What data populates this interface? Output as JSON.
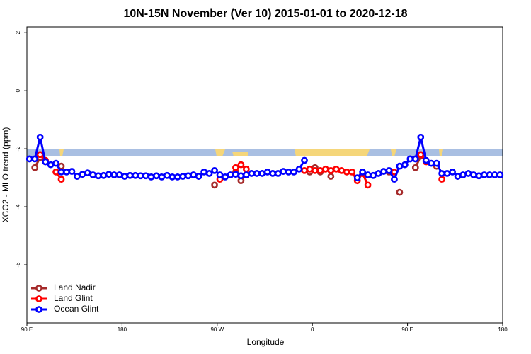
{
  "chart_data": {
    "type": "line",
    "title": "10N-15N November (Ver 10)   2015-01-01 to 2020-12-18",
    "xlabel": "Longitude",
    "ylabel": "XCO2 - MLO trend (ppm)",
    "xlim": [
      90,
      540
    ],
    "xticks": [
      {
        "value": 90,
        "label": "90 E"
      },
      {
        "value": 180,
        "label": "180"
      },
      {
        "value": 270,
        "label": "90 W"
      },
      {
        "value": 360,
        "label": "0"
      },
      {
        "value": 450,
        "label": "90 E"
      },
      {
        "value": 540,
        "label": "180"
      }
    ],
    "ylim": [
      -8,
      2.2
    ],
    "yticks": [
      -6,
      -4,
      -2,
      0,
      2
    ],
    "grid": false,
    "legend": "bottomleft",
    "x": [
      92.5,
      97.5,
      102.5,
      107.5,
      112.5,
      117.5,
      122.5,
      127.5,
      132.5,
      137.5,
      142.5,
      147.5,
      152.5,
      157.5,
      162.5,
      167.5,
      172.5,
      177.5,
      182.5,
      187.5,
      192.5,
      197.5,
      202.5,
      207.5,
      212.5,
      217.5,
      222.5,
      227.5,
      232.5,
      237.5,
      242.5,
      247.5,
      252.5,
      257.5,
      262.5,
      267.5,
      272.5,
      277.5,
      282.5,
      287.5,
      292.5,
      297.5,
      302.5,
      307.5,
      312.5,
      317.5,
      322.5,
      327.5,
      332.5,
      337.5,
      342.5,
      347.5,
      352.5,
      357.5,
      362.5,
      367.5,
      372.5,
      377.5,
      382.5,
      387.5,
      392.5,
      397.5,
      402.5,
      407.5,
      412.5,
      417.5,
      422.5,
      427.5,
      432.5,
      437.5,
      442.5,
      447.5,
      452.5,
      457.5,
      462.5,
      467.5,
      472.5,
      477.5,
      482.5,
      487.5,
      492.5,
      497.5,
      502.5,
      507.5,
      512.5,
      517.5,
      522.5,
      527.5,
      532.5,
      537.5
    ],
    "series": [
      {
        "name": "Land Nadir",
        "color": "#a52a2a",
        "values": [
          null,
          -2.65,
          -2.3,
          null,
          null,
          null,
          -2.6,
          null,
          null,
          null,
          null,
          null,
          null,
          null,
          null,
          null,
          null,
          null,
          null,
          null,
          null,
          null,
          null,
          null,
          null,
          null,
          null,
          null,
          null,
          null,
          null,
          null,
          null,
          null,
          null,
          -3.25,
          null,
          null,
          null,
          -2.8,
          -3.1,
          null,
          null,
          null,
          null,
          null,
          null,
          null,
          null,
          null,
          null,
          null,
          null,
          -2.8,
          -2.65,
          -2.8,
          null,
          -2.95,
          null,
          null,
          null,
          null,
          null,
          null,
          null,
          null,
          null,
          null,
          -2.8,
          null,
          -3.5,
          null,
          null,
          -2.65,
          -2.25,
          null,
          null,
          -2.6,
          null,
          null,
          null,
          null,
          null,
          null,
          null,
          null,
          null,
          null,
          null,
          null
        ]
      },
      {
        "name": "Land Glint",
        "color": "#ff0000",
        "values": [
          null,
          null,
          -2.2,
          -2.4,
          null,
          -2.8,
          -3.05,
          null,
          null,
          null,
          null,
          null,
          null,
          null,
          null,
          null,
          null,
          null,
          null,
          null,
          null,
          null,
          null,
          null,
          null,
          null,
          null,
          null,
          null,
          null,
          null,
          null,
          null,
          null,
          null,
          null,
          -3.05,
          null,
          null,
          -2.65,
          -2.55,
          -2.7,
          null,
          null,
          null,
          null,
          null,
          null,
          null,
          null,
          null,
          null,
          -2.75,
          -2.7,
          -2.75,
          -2.75,
          -2.7,
          -2.75,
          -2.7,
          -2.75,
          -2.8,
          -2.8,
          -3.1,
          -2.85,
          -3.25,
          null,
          null,
          null,
          null,
          -2.8,
          null,
          null,
          null,
          null,
          -2.2,
          -2.45,
          null,
          null,
          -3.05,
          null,
          null,
          null,
          null,
          null,
          null,
          null,
          null,
          null,
          null,
          null
        ]
      },
      {
        "name": "Ocean Glint",
        "color": "#0000ff",
        "values": [
          -2.35,
          -2.35,
          -1.6,
          -2.45,
          -2.55,
          -2.5,
          -2.8,
          -2.8,
          -2.78,
          -2.95,
          -2.88,
          -2.83,
          -2.9,
          -2.93,
          -2.92,
          -2.88,
          -2.9,
          -2.9,
          -2.95,
          -2.92,
          -2.92,
          -2.93,
          -2.93,
          -2.97,
          -2.93,
          -2.97,
          -2.92,
          -2.97,
          -2.97,
          -2.95,
          -2.93,
          -2.9,
          -2.95,
          -2.8,
          -2.85,
          -2.75,
          -2.9,
          -2.97,
          -2.9,
          -2.88,
          -2.93,
          -2.9,
          -2.85,
          -2.85,
          -2.85,
          -2.8,
          -2.85,
          -2.85,
          -2.78,
          -2.8,
          -2.8,
          -2.7,
          -2.4,
          null,
          null,
          null,
          null,
          null,
          null,
          null,
          null,
          null,
          -3.0,
          -2.8,
          -2.9,
          -2.92,
          -2.85,
          -2.78,
          -2.75,
          -3.05,
          -2.6,
          -2.55,
          -2.35,
          -2.35,
          -1.6,
          -2.4,
          -2.5,
          -2.5,
          -2.85,
          -2.85,
          -2.8,
          -2.95,
          -2.9,
          -2.85,
          -2.9,
          -2.93,
          -2.9,
          -2.9,
          -2.9,
          -2.9
        ]
      }
    ]
  }
}
